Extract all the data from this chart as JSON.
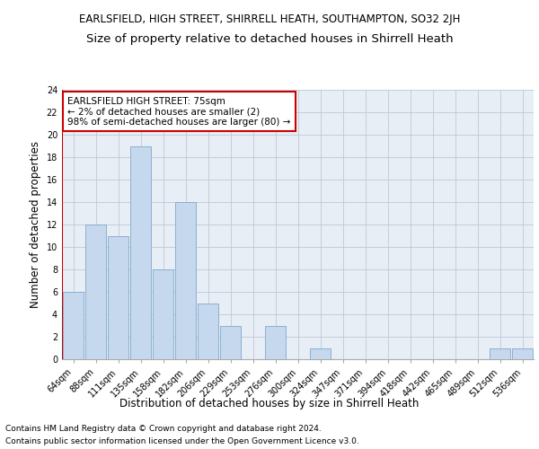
{
  "title": "EARLSFIELD, HIGH STREET, SHIRRELL HEATH, SOUTHAMPTON, SO32 2JH",
  "subtitle": "Size of property relative to detached houses in Shirrell Heath",
  "xlabel": "Distribution of detached houses by size in Shirrell Heath",
  "ylabel": "Number of detached properties",
  "categories": [
    "64sqm",
    "88sqm",
    "111sqm",
    "135sqm",
    "158sqm",
    "182sqm",
    "206sqm",
    "229sqm",
    "253sqm",
    "276sqm",
    "300sqm",
    "324sqm",
    "347sqm",
    "371sqm",
    "394sqm",
    "418sqm",
    "442sqm",
    "465sqm",
    "489sqm",
    "512sqm",
    "536sqm"
  ],
  "values": [
    6,
    12,
    11,
    19,
    8,
    14,
    5,
    3,
    0,
    3,
    0,
    1,
    0,
    0,
    0,
    0,
    0,
    0,
    0,
    1,
    1
  ],
  "bar_color": "#c5d8ed",
  "bar_edge_color": "#7fa8cc",
  "annotation_line1": "EARLSFIELD HIGH STREET: 75sqm",
  "annotation_line2": "← 2% of detached houses are smaller (2)",
  "annotation_line3": "98% of semi-detached houses are larger (80) →",
  "annotation_box_edge_color": "#cc0000",
  "reference_line_color": "#cc0000",
  "ylim": [
    0,
    24
  ],
  "yticks": [
    0,
    2,
    4,
    6,
    8,
    10,
    12,
    14,
    16,
    18,
    20,
    22,
    24
  ],
  "grid_color": "#c0c8d8",
  "background_color": "#e8eef5",
  "footer_line1": "Contains HM Land Registry data © Crown copyright and database right 2024.",
  "footer_line2": "Contains public sector information licensed under the Open Government Licence v3.0.",
  "title_fontsize": 8.5,
  "subtitle_fontsize": 9.5,
  "xlabel_fontsize": 8.5,
  "ylabel_fontsize": 8.5,
  "tick_fontsize": 7,
  "annotation_fontsize": 7.5,
  "footer_fontsize": 6.5
}
